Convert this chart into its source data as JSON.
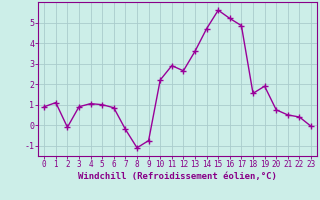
{
  "x": [
    0,
    1,
    2,
    3,
    4,
    5,
    6,
    7,
    8,
    9,
    10,
    11,
    12,
    13,
    14,
    15,
    16,
    17,
    18,
    19,
    20,
    21,
    22,
    23
  ],
  "y": [
    0.9,
    1.1,
    -0.1,
    0.9,
    1.05,
    1.0,
    0.85,
    -0.2,
    -1.1,
    -0.75,
    2.2,
    2.9,
    2.65,
    3.6,
    4.7,
    5.6,
    5.2,
    4.85,
    1.55,
    1.9,
    0.75,
    0.5,
    0.4,
    -0.05
  ],
  "line_color": "#990099",
  "marker": "+",
  "marker_size": 4,
  "linewidth": 1.0,
  "xlabel": "Windchill (Refroidissement éolien,°C)",
  "xlabel_fontsize": 6.5,
  "bg_color": "#cceee8",
  "grid_color": "#aacccc",
  "tick_color": "#880088",
  "ylim": [
    -1.5,
    6.0
  ],
  "xlim": [
    -0.5,
    23.5
  ],
  "yticks": [
    -1,
    0,
    1,
    2,
    3,
    4,
    5
  ],
  "xticks": [
    0,
    1,
    2,
    3,
    4,
    5,
    6,
    7,
    8,
    9,
    10,
    11,
    12,
    13,
    14,
    15,
    16,
    17,
    18,
    19,
    20,
    21,
    22,
    23
  ],
  "tick_fontsize": 5.5,
  "ytick_fontsize": 6.0
}
